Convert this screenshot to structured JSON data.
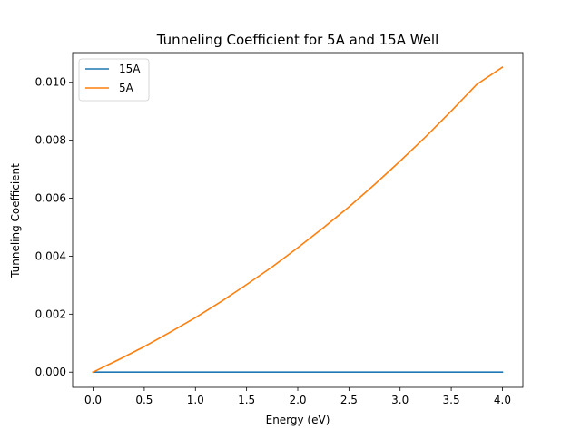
{
  "chart_data": {
    "type": "line",
    "title": "Tunneling Coefficient for 5A and 15A Well",
    "xlabel": "Energy (eV)",
    "ylabel": "Tunneling Coefficient",
    "xlim": [
      -0.2,
      4.2
    ],
    "ylim": [
      -0.000525,
      0.011025
    ],
    "x_ticks": [
      0.0,
      0.5,
      1.0,
      1.5,
      2.0,
      2.5,
      3.0,
      3.5,
      4.0
    ],
    "x_tick_labels": [
      "0.0",
      "0.5",
      "1.0",
      "1.5",
      "2.0",
      "2.5",
      "3.0",
      "3.5",
      "4.0"
    ],
    "y_ticks": [
      0.0,
      0.002,
      0.004,
      0.006,
      0.008,
      0.01
    ],
    "y_tick_labels": [
      "0.000",
      "0.002",
      "0.004",
      "0.006",
      "0.008",
      "0.010"
    ],
    "grid": false,
    "legend_position": "top-left",
    "x": [
      0.0,
      0.25,
      0.5,
      0.75,
      1.0,
      1.25,
      1.5,
      1.75,
      2.0,
      2.25,
      2.5,
      2.75,
      3.0,
      3.25,
      3.5,
      3.75,
      4.0
    ],
    "series": [
      {
        "name": "15A",
        "color": "#1f77b4",
        "values": [
          0,
          0,
          0,
          0,
          0,
          0,
          0,
          0,
          0,
          0,
          0,
          0,
          0,
          0,
          0,
          0,
          0
        ]
      },
      {
        "name": "5A",
        "color": "#ff7f0e",
        "values": [
          0.0,
          0.00043,
          0.00088,
          0.00137,
          0.00188,
          0.00243,
          0.00302,
          0.00363,
          0.00429,
          0.00498,
          0.0057,
          0.00647,
          0.00728,
          0.00812,
          0.00901,
          0.00993,
          0.01052
        ]
      }
    ]
  }
}
